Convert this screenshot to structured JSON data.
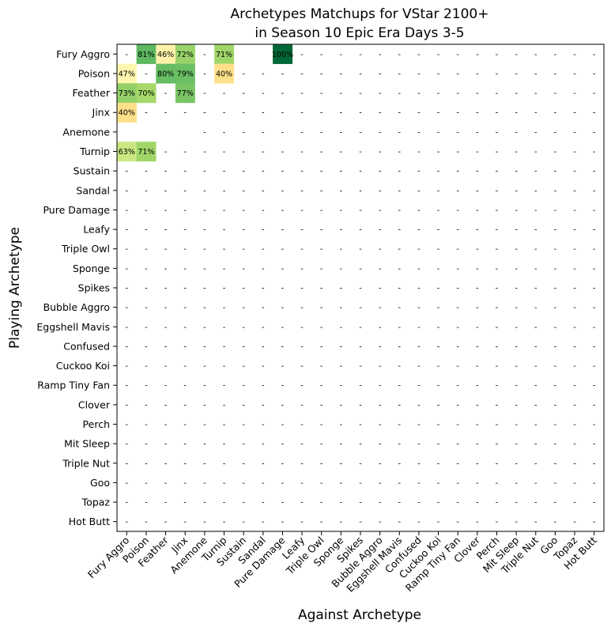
{
  "chart_data": {
    "type": "heatmap",
    "title": "Archetypes Matchups for VStar 2100+\nin Season 10 Epic Era Days 3-5",
    "xlabel": "Against Archetype",
    "ylabel": "Playing Archetype",
    "x_categories": [
      "Fury Aggro",
      "Poison",
      "Feather",
      "Jinx",
      "Anemone",
      "Turnip",
      "Sustain",
      "Sandal",
      "Pure Damage",
      "Leafy",
      "Triple Owl",
      "Sponge",
      "Spikes",
      "Bubble Aggro",
      "Eggshell Mavis",
      "Confused",
      "Cuckoo Koi",
      "Ramp Tiny Fan",
      "Clover",
      "Perch",
      "Mit Sleep",
      "Triple Nut",
      "Goo",
      "Topaz",
      "Hot Butt"
    ],
    "y_categories": [
      "Fury Aggro",
      "Poison",
      "Feather",
      "Jinx",
      "Anemone",
      "Turnip",
      "Sustain",
      "Sandal",
      "Pure Damage",
      "Leafy",
      "Triple Owl",
      "Sponge",
      "Spikes",
      "Bubble Aggro",
      "Eggshell Mavis",
      "Confused",
      "Cuckoo Koi",
      "Ramp Tiny Fan",
      "Clover",
      "Perch",
      "Mit Sleep",
      "Triple Nut",
      "Goo",
      "Topaz",
      "Hot Butt"
    ],
    "missing_label": "-",
    "cells": [
      {
        "row": "Fury Aggro",
        "col": "Poison",
        "value": 81,
        "label": "81%"
      },
      {
        "row": "Fury Aggro",
        "col": "Feather",
        "value": 46,
        "label": "46%"
      },
      {
        "row": "Fury Aggro",
        "col": "Jinx",
        "value": 72,
        "label": "72%"
      },
      {
        "row": "Fury Aggro",
        "col": "Turnip",
        "value": 71,
        "label": "71%"
      },
      {
        "row": "Fury Aggro",
        "col": "Pure Damage",
        "value": 100,
        "label": "100%"
      },
      {
        "row": "Poison",
        "col": "Fury Aggro",
        "value": 47,
        "label": "47%"
      },
      {
        "row": "Poison",
        "col": "Feather",
        "value": 80,
        "label": "80%"
      },
      {
        "row": "Poison",
        "col": "Jinx",
        "value": 79,
        "label": "79%"
      },
      {
        "row": "Poison",
        "col": "Turnip",
        "value": 40,
        "label": "40%"
      },
      {
        "row": "Feather",
        "col": "Fury Aggro",
        "value": 73,
        "label": "73%"
      },
      {
        "row": "Feather",
        "col": "Poison",
        "value": 70,
        "label": "70%"
      },
      {
        "row": "Feather",
        "col": "Jinx",
        "value": 77,
        "label": "77%"
      },
      {
        "row": "Jinx",
        "col": "Fury Aggro",
        "value": 40,
        "label": "40%"
      },
      {
        "row": "Turnip",
        "col": "Fury Aggro",
        "value": 63,
        "label": "63%"
      },
      {
        "row": "Turnip",
        "col": "Poison",
        "value": 71,
        "label": "71%"
      }
    ],
    "blank_cells": [
      {
        "row": "Fury Aggro",
        "col": "Sustain"
      },
      {
        "row": "Fury Aggro",
        "col": "Sandal"
      },
      {
        "row": "Anemone",
        "col": "Fury Aggro"
      },
      {
        "row": "Anemone",
        "col": "Poison"
      },
      {
        "row": "Anemone",
        "col": "Feather"
      },
      {
        "row": "Anemone",
        "col": "Jinx"
      }
    ],
    "colormap": "RdYlGn",
    "value_range": [
      0,
      100
    ]
  }
}
